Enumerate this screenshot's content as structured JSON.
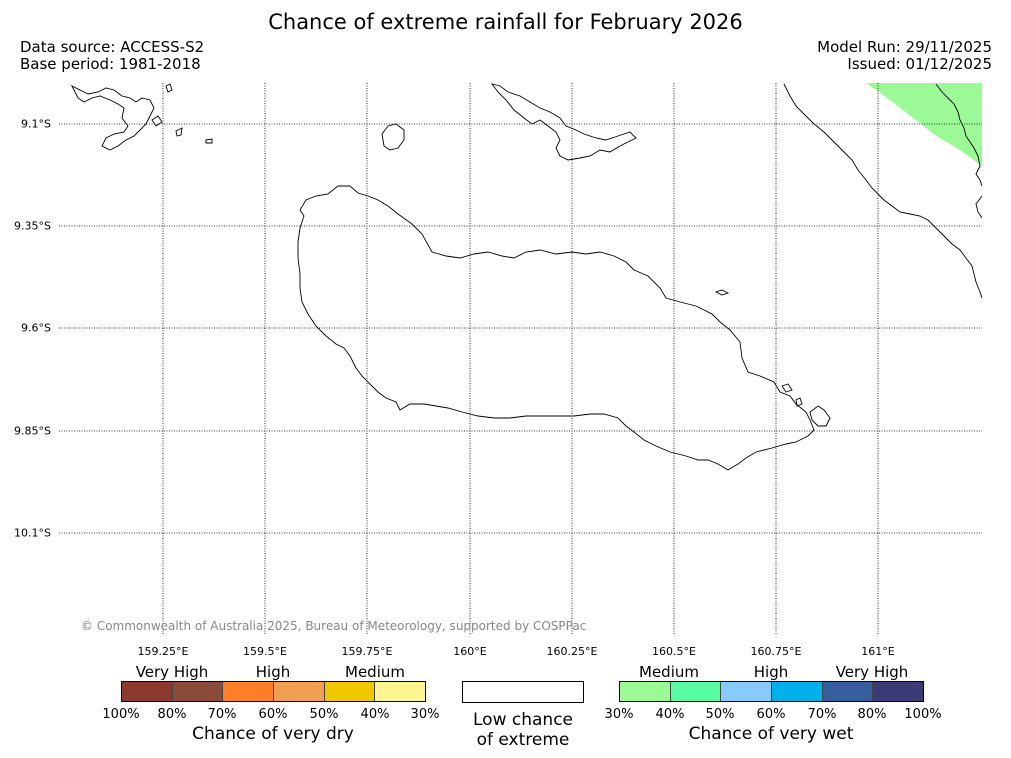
{
  "title": "Chance of extreme rainfall for February 2026",
  "info": {
    "data_source": "Data source: ACCESS-S2",
    "base_period": "Base period: 1981-2018",
    "model_run": "Model Run: 29/11/2025",
    "issued": "Issued: 01/12/2025"
  },
  "map": {
    "lat_labels": [
      "9.1°S",
      "9.35°S",
      "9.6°S",
      "9.85°S",
      "10.1°S"
    ],
    "lon_labels": [
      "159.25°E",
      "159.5°E",
      "159.75°E",
      "160°E",
      "160.25°E",
      "160.5°E",
      "160.75°E",
      "161°E"
    ],
    "shaded_region": {
      "category": "Medium wet",
      "range": "30%-40%",
      "color": "#9cfa96"
    },
    "credit": "© Commonwealth of Australia 2025, Bureau of Meteorology, supported by COSPPac"
  },
  "legend": {
    "dry": {
      "categories": [
        "Very High",
        "High",
        "Medium"
      ],
      "colors": [
        "#8c3a30",
        "#8b4c3a",
        "#ff7f27",
        "#f0a050",
        "#f0c800",
        "#fff68f"
      ],
      "ticks": [
        "100%",
        "80%",
        "70%",
        "60%",
        "50%",
        "40%",
        "30%"
      ],
      "title": "Chance of very dry"
    },
    "low": {
      "line1": "Low chance",
      "line2": "of extreme",
      "color": "#ffffff"
    },
    "wet": {
      "categories": [
        "Medium",
        "High",
        "Very High"
      ],
      "colors": [
        "#9cfa96",
        "#56fc9f",
        "#88cbfa",
        "#00b0eb",
        "#345f9c",
        "#3c3a78"
      ],
      "ticks": [
        "30%",
        "40%",
        "50%",
        "60%",
        "70%",
        "80%",
        "100%"
      ],
      "title": "Chance of very wet"
    }
  }
}
